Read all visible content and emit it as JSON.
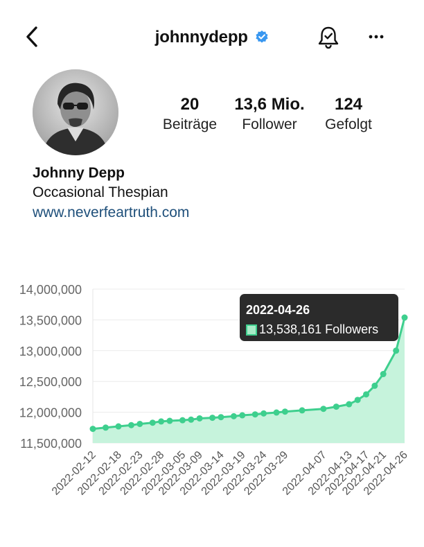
{
  "header": {
    "username": "johnnydepp",
    "icons": {
      "back": "chevron-left-icon",
      "verified": "verified-badge-icon",
      "notifications": "bell-icon",
      "more": "more-horizontal-icon"
    },
    "colors": {
      "verified": "#3897f0"
    }
  },
  "profile": {
    "stats": [
      {
        "value": "20",
        "label": "Beiträge"
      },
      {
        "value": "13,6 Mio.",
        "label": "Follower"
      },
      {
        "value": "124",
        "label": "Gefolgt"
      }
    ],
    "name": "Johnny Depp",
    "bio": "Occasional Thespian",
    "link": "www.neverfeartruth.com"
  },
  "chart_data": {
    "type": "area",
    "x": [
      "2022-02-12",
      "2022-02-15",
      "2022-02-18",
      "2022-02-21",
      "2022-02-23",
      "2022-02-26",
      "2022-02-28",
      "2022-03-02",
      "2022-03-05",
      "2022-03-07",
      "2022-03-09",
      "2022-03-12",
      "2022-03-14",
      "2022-03-17",
      "2022-03-19",
      "2022-03-22",
      "2022-03-24",
      "2022-03-27",
      "2022-03-29",
      "2022-04-02",
      "2022-04-07",
      "2022-04-10",
      "2022-04-13",
      "2022-04-15",
      "2022-04-17",
      "2022-04-19",
      "2022-04-21",
      "2022-04-24",
      "2022-04-26"
    ],
    "x_tick_labels": [
      "2022-02-12",
      "2022-02-18",
      "2022-02-23",
      "2022-02-28",
      "2022-03-05",
      "2022-03-09",
      "2022-03-14",
      "2022-03-19",
      "2022-03-24",
      "2022-03-29",
      "2022-04-07",
      "2022-04-13",
      "2022-04-17",
      "2022-04-21",
      "2022-04-26"
    ],
    "series": [
      {
        "values": [
          11730000,
          11750000,
          11770000,
          11790000,
          11810000,
          11830000,
          11850000,
          11860000,
          11870000,
          11880000,
          11900000,
          11910000,
          11920000,
          11935000,
          11950000,
          11965000,
          11980000,
          11995000,
          12010000,
          12030000,
          12055000,
          12090000,
          12130000,
          12200000,
          12290000,
          12430000,
          12620000,
          13000000,
          13538161
        ]
      }
    ],
    "y_ticks": [
      "14,000,000",
      "13,500,000",
      "13,000,000",
      "12,500,000",
      "12,000,000",
      "11,500,000"
    ],
    "ylim": [
      11500000,
      14000000
    ],
    "grid": "horizontal",
    "tooltip": {
      "date": "2022-04-26",
      "text": "13,538,161 Followers"
    },
    "colors": {
      "line": "#3ecf8e",
      "fill": "#c6f3dc"
    }
  }
}
